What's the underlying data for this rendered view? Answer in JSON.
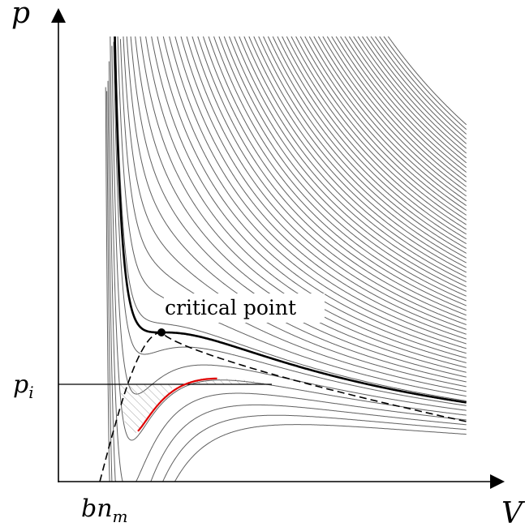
{
  "axes": {
    "y_label": "p",
    "x_label": "V"
  },
  "labels": {
    "critical_point": "critical point",
    "pressure_level_main": "p",
    "pressure_level_sub": "i",
    "excluded_volume_main": "bn",
    "excluded_volume_sub": "m"
  },
  "colors": {
    "isotherm": "#606060",
    "critical_isotherm": "#000000",
    "highlight_isotherm": "#e00000",
    "hatch": "#9a9a9a",
    "coexistence_curve": "#000000"
  }
}
